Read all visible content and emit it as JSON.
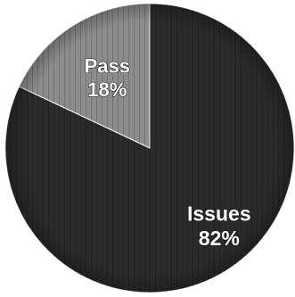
{
  "chart_data": {
    "type": "pie",
    "title": "",
    "slices": [
      {
        "label": "Pass",
        "value": 18,
        "value_label": "18%",
        "color": "#8c8c8c"
      },
      {
        "label": "Issues",
        "value": 82,
        "value_label": "82%",
        "color": "#2a2a2a"
      }
    ],
    "start": "12 o'clock",
    "direction": "counter-clockwise",
    "legend": "none",
    "labels": "inside slices"
  }
}
